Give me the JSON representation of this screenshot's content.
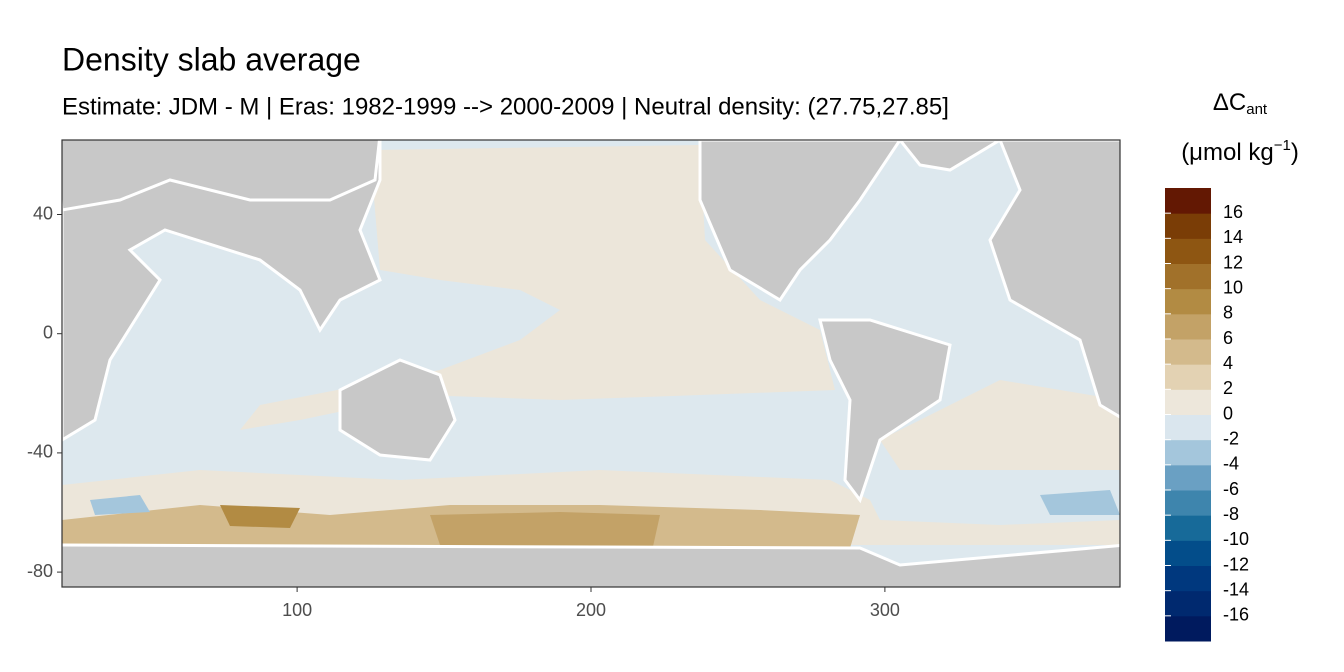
{
  "chart_data": {
    "type": "map",
    "title": "Density slab average",
    "subtitle": "Estimate: JDM - M | Eras: 1982-1999 --> 2000-2009 | Neutral density: (27.75,27.85]",
    "xlim": [
      20,
      380
    ],
    "xticks": [
      100,
      200,
      300
    ],
    "ylim": [
      -85,
      65
    ],
    "yticks": [
      -80,
      -40,
      0,
      40
    ],
    "legend": {
      "title_main": "ΔC",
      "title_sub": "ant",
      "unit_main": "(μmol kg",
      "unit_sup": "−1",
      "unit_end": ")",
      "lim": [
        -18,
        18
      ],
      "ticks": [
        16,
        14,
        12,
        10,
        8,
        6,
        4,
        2,
        0,
        -2,
        -4,
        -6,
        -8,
        -10,
        -12,
        -14,
        -16
      ],
      "breaks": [
        -18,
        -16,
        -14,
        -12,
        -10,
        -8,
        -6,
        -4,
        -2,
        0,
        2,
        4,
        6,
        8,
        10,
        12,
        14,
        16,
        18
      ],
      "colors": [
        "#001a5e",
        "#00296f",
        "#00387e",
        "#034d8a",
        "#176a99",
        "#3e85ad",
        "#6aa0c3",
        "#a4c6dc",
        "#dae6ee",
        "#ede7db",
        "#e3d2b3",
        "#d3ba8c",
        "#c3a267",
        "#b28b43",
        "#a1712a",
        "#8e5612",
        "#7a3d06",
        "#631803"
      ]
    }
  }
}
